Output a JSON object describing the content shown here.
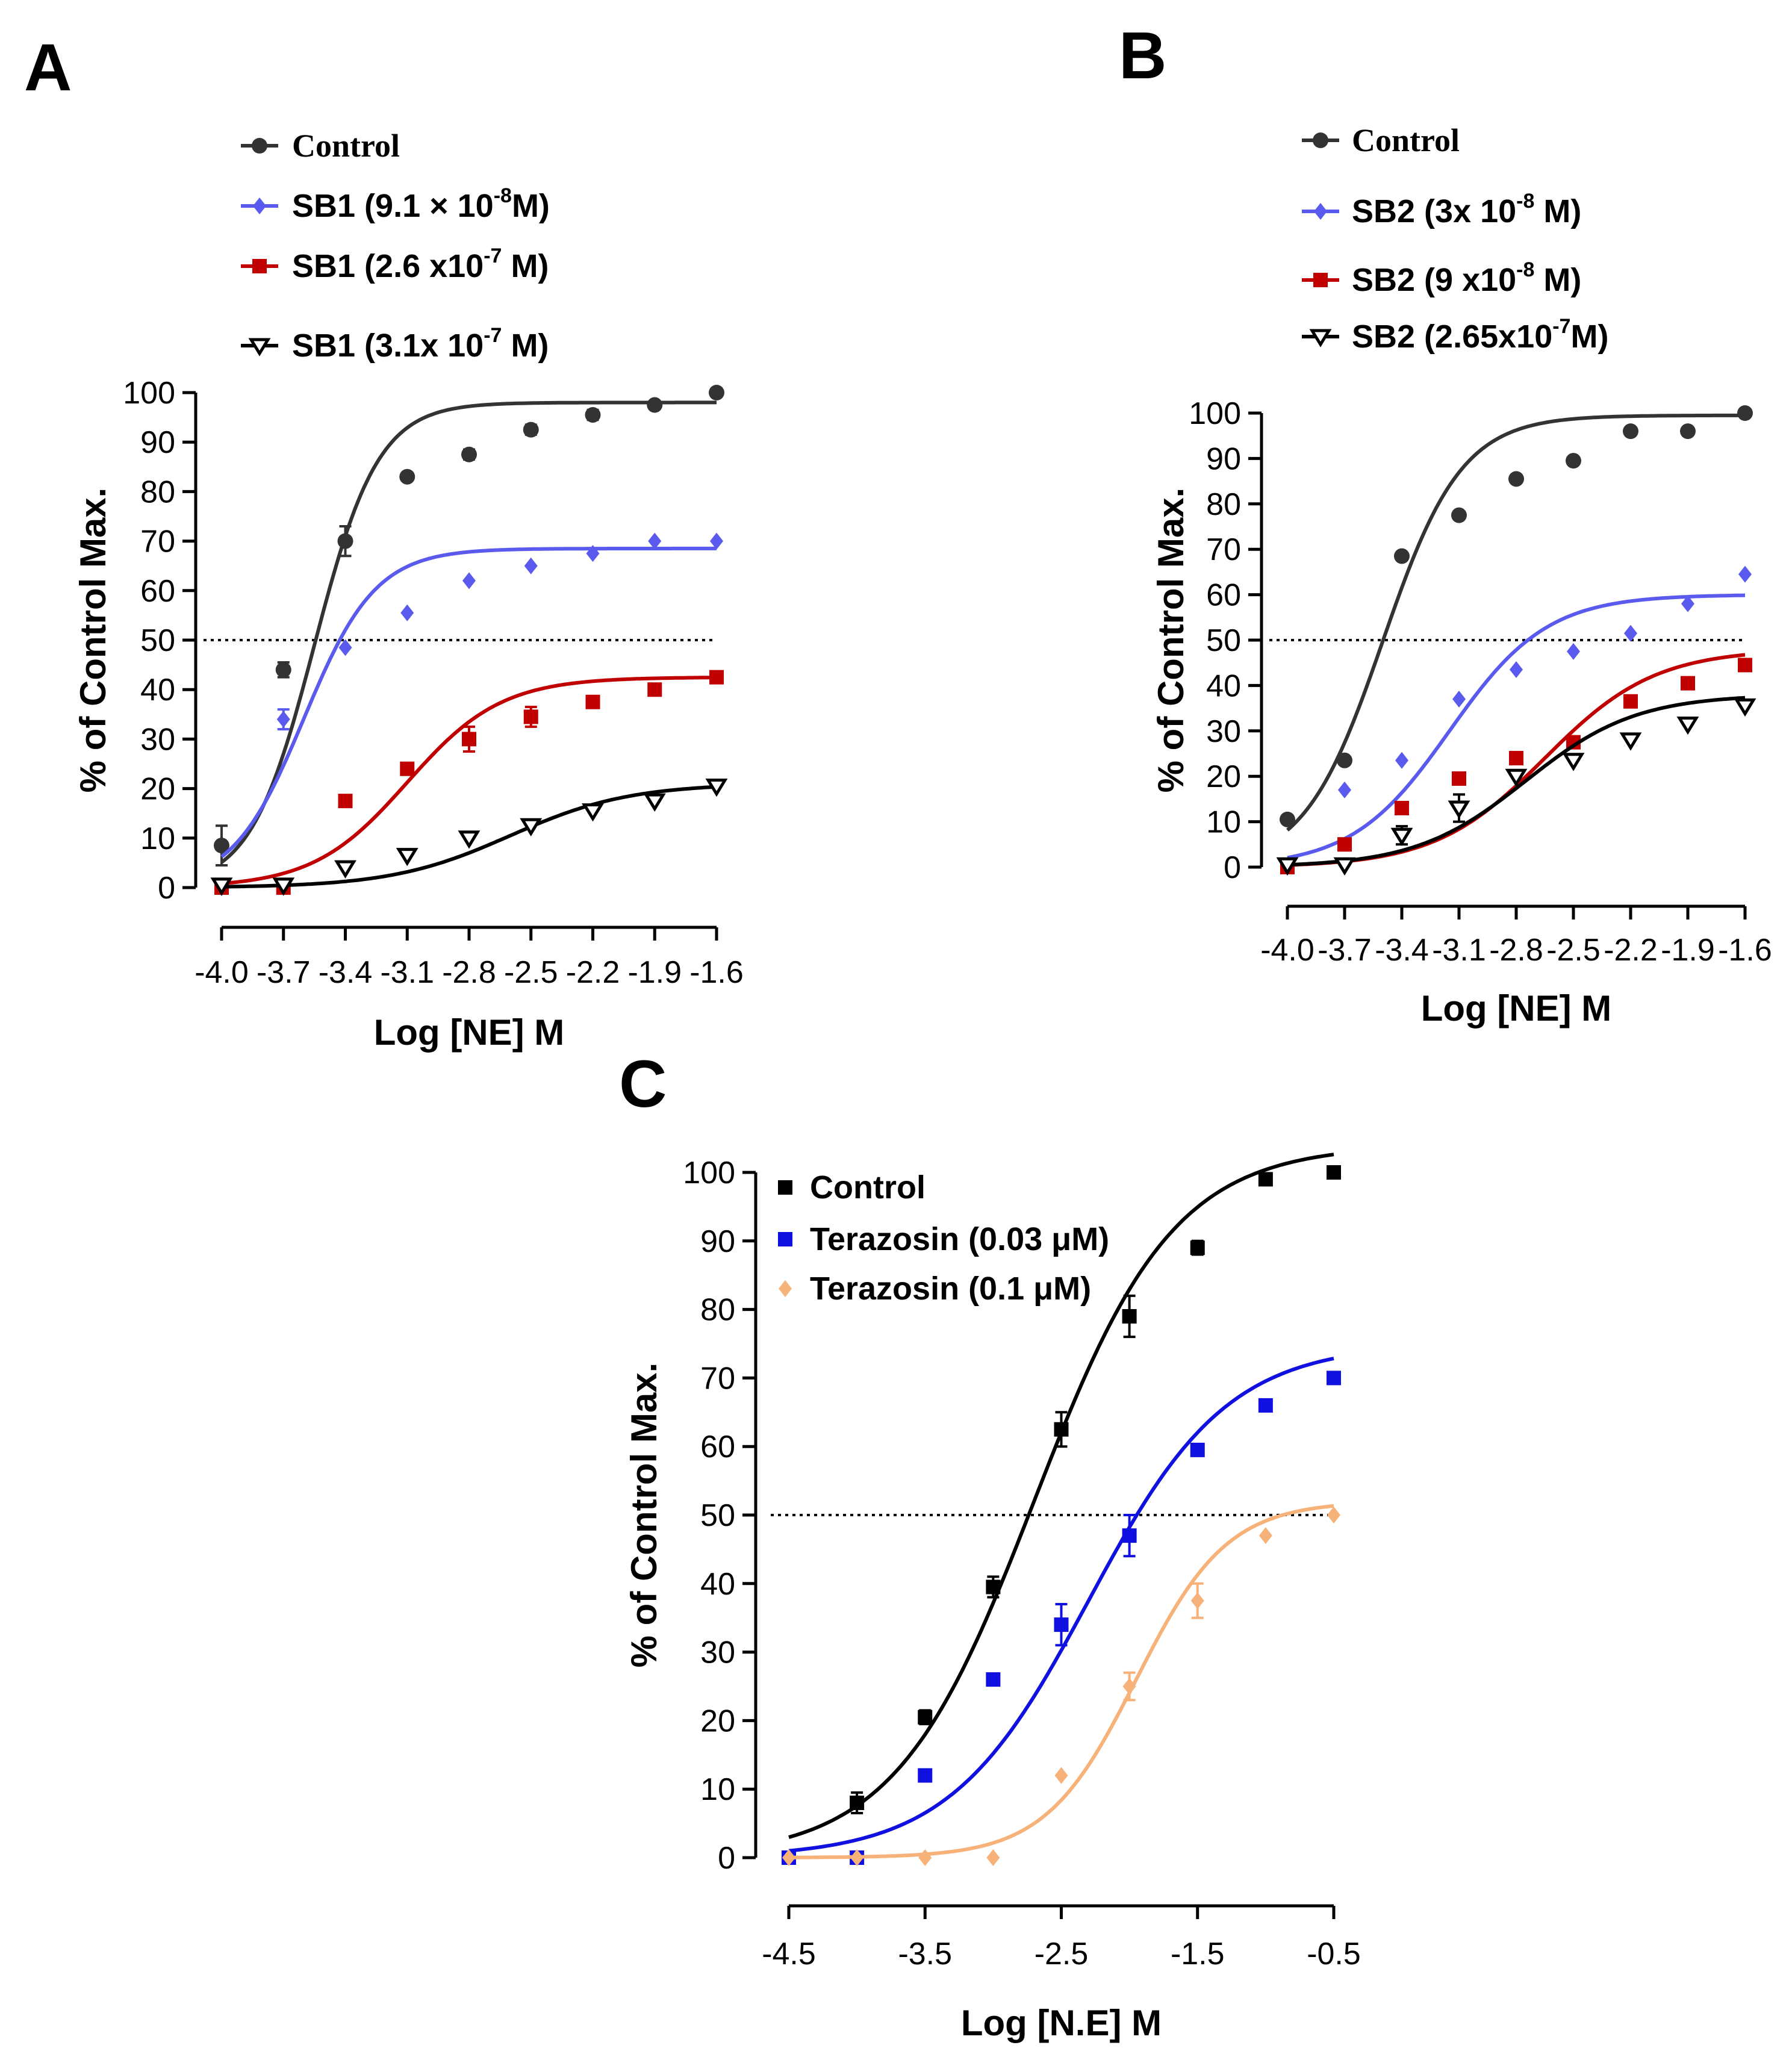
{
  "panels": [
    {
      "id": "A",
      "letter": "A",
      "type": "line",
      "title": "",
      "xlabel": "Log [NE] M",
      "ylabel": "% of Control Max.",
      "xlim": [
        -4.0,
        -1.6
      ],
      "ylim": [
        0,
        100
      ],
      "xticks": [
        -4.0,
        -3.7,
        -3.4,
        -3.1,
        -2.8,
        -2.5,
        -2.2,
        -1.9,
        -1.6
      ],
      "xtick_labels": [
        "-4.0",
        "-3.7",
        "-3.4",
        "-3.1",
        "-2.8",
        "-2.5",
        "-2.2",
        "-1.9",
        "-1.6"
      ],
      "yticks": [
        0,
        10,
        20,
        30,
        40,
        50,
        60,
        70,
        80,
        90,
        100
      ],
      "ytick_labels": [
        "0",
        "10",
        "20",
        "30",
        "40",
        "50",
        "60",
        "70",
        "80",
        "90",
        "100"
      ],
      "reference_y": 50,
      "legend_position": "top-left",
      "series": [
        {
          "name": "Control",
          "legend": {
            "pre": "Control",
            "sup": "",
            "post": ""
          },
          "serif": true,
          "color": "#333333",
          "marker": "circle",
          "x": [
            -4.0,
            -3.7,
            -3.4,
            -3.1,
            -2.8,
            -2.5,
            -2.2,
            -1.9,
            -1.6
          ],
          "y": [
            8.5,
            44,
            70,
            83,
            87.5,
            92.5,
            95.5,
            97.5,
            100
          ],
          "err": [
            4,
            1.5,
            3,
            0.5,
            1,
            1,
            1,
            0.5,
            0
          ],
          "fit": {
            "bottom": 0,
            "top": 98,
            "ec50": -3.55,
            "hill": 2.8
          }
        },
        {
          "name": "SB1 (9.1 × 10-8M)",
          "legend": {
            "pre": "SB1 (9.1 × 10",
            "sup": "-8",
            "post": "M)"
          },
          "serif": false,
          "color": "#5a5aee",
          "marker": "diamond",
          "x": [
            -4.0,
            -3.7,
            -3.4,
            -3.1,
            -2.8,
            -2.5,
            -2.2,
            -1.9,
            -1.6
          ],
          "y": [
            0,
            34,
            48.5,
            55.5,
            62,
            65,
            67.5,
            70,
            70
          ],
          "err": [
            0,
            2,
            0,
            0,
            0,
            0,
            0,
            0,
            0
          ],
          "fit": {
            "bottom": 0,
            "top": 68.5,
            "ec50": -3.6,
            "hill": 2.5
          }
        },
        {
          "name": "SB1 (2.6 x10-7 M)",
          "legend": {
            "pre": "SB1 (2.6 x10",
            "sup": "-7",
            "post": " M)"
          },
          "serif": false,
          "color": "#c00000",
          "marker": "square",
          "x": [
            -4.0,
            -3.7,
            -3.4,
            -3.1,
            -2.8,
            -2.5,
            -2.2,
            -1.9,
            -1.6
          ],
          "y": [
            0,
            0,
            17.5,
            24,
            30,
            34.5,
            37.5,
            40,
            42.5
          ],
          "err": [
            0,
            0,
            0,
            1,
            2.5,
            2,
            0,
            0,
            0
          ],
          "fit": {
            "bottom": 0,
            "top": 42.5,
            "ec50": -3.1,
            "hill": 1.9
          }
        },
        {
          "name": "SB1 (3.1x 10-7 M)",
          "legend": {
            "pre": "SB1 (3.1x 10",
            "sup": "-7",
            "post": " M)"
          },
          "serif": false,
          "color": "#000000",
          "marker": "triangle-down",
          "x": [
            -4.0,
            -3.7,
            -3.4,
            -3.1,
            -2.8,
            -2.5,
            -2.2,
            -1.9,
            -1.6
          ],
          "y": [
            0.5,
            0.5,
            4,
            6.5,
            10,
            12.5,
            15.5,
            17.5,
            20.5
          ],
          "err": [
            0,
            0,
            0,
            0,
            0,
            0,
            0,
            0,
            0
          ],
          "fit": {
            "bottom": 0,
            "top": 21,
            "ec50": -2.6,
            "hill": 1.5
          }
        }
      ]
    },
    {
      "id": "B",
      "letter": "B",
      "type": "line",
      "title": "",
      "xlabel": "Log [NE] M",
      "ylabel": "% of Control Max.",
      "xlim": [
        -4.0,
        -1.6
      ],
      "ylim": [
        0,
        100
      ],
      "xticks": [
        -4.0,
        -3.7,
        -3.4,
        -3.1,
        -2.8,
        -2.5,
        -2.2,
        -1.9,
        -1.6
      ],
      "xtick_labels": [
        "-4.0",
        "-3.7",
        "-3.4",
        "-3.1",
        "-2.8",
        "-2.5",
        "-2.2",
        "-1.9",
        "-1.6"
      ],
      "yticks": [
        0,
        10,
        20,
        30,
        40,
        50,
        60,
        70,
        80,
        90,
        100
      ],
      "ytick_labels": [
        "0",
        "10",
        "20",
        "30",
        "40",
        "50",
        "60",
        "70",
        "80",
        "90",
        "100"
      ],
      "reference_y": 50,
      "legend_position": "top-left",
      "series": [
        {
          "name": "Control",
          "legend": {
            "pre": "Control",
            "sup": "",
            "post": ""
          },
          "serif": true,
          "color": "#333333",
          "marker": "circle",
          "x": [
            -4.0,
            -3.7,
            -3.4,
            -3.1,
            -2.8,
            -2.5,
            -2.2,
            -1.9,
            -1.6
          ],
          "y": [
            10.5,
            23.5,
            68.5,
            77.5,
            85.5,
            89.5,
            96,
            96,
            100
          ],
          "err": [
            0,
            0,
            0,
            0,
            0,
            0,
            0,
            0,
            0
          ],
          "fit": {
            "bottom": 0,
            "top": 99.5,
            "ec50": -3.5,
            "hill": 2.1
          }
        },
        {
          "name": "SB2 (3x 10-8 M)",
          "legend": {
            "pre": "SB2 (3x 10",
            "sup": "-8",
            "post": " M)"
          },
          "serif": false,
          "color": "#5a5aee",
          "marker": "diamond",
          "x": [
            -4.0,
            -3.7,
            -3.4,
            -3.1,
            -2.8,
            -2.5,
            -2.2,
            -1.9,
            -1.6
          ],
          "y": [
            0,
            17,
            23.5,
            37,
            43.5,
            47.5,
            51.5,
            58,
            64.5
          ],
          "err": [
            0,
            0,
            0,
            0,
            0,
            0,
            0,
            0,
            0
          ],
          "fit": {
            "bottom": 0,
            "top": 60,
            "ec50": -3.15,
            "hill": 1.7
          }
        },
        {
          "name": "SB2 (9 x10-8 M)",
          "legend": {
            "pre": "SB2 (9 x10",
            "sup": "-8",
            "post": " M)"
          },
          "serif": false,
          "color": "#c00000",
          "marker": "square",
          "x": [
            -4.0,
            -3.7,
            -3.4,
            -3.1,
            -2.8,
            -2.5,
            -2.2,
            -1.9,
            -1.6
          ],
          "y": [
            0,
            5,
            13,
            19.5,
            24,
            27.5,
            36.5,
            40.5,
            44.5
          ],
          "err": [
            0,
            0,
            0,
            0,
            0,
            0,
            0,
            0,
            0
          ],
          "fit": {
            "bottom": 0,
            "top": 48,
            "ec50": -2.65,
            "hill": 1.5
          }
        },
        {
          "name": "SB2 (2.65x10-7M)",
          "legend": {
            "pre": "SB2 (2.65x10",
            "sup": "-7",
            "post": "M)"
          },
          "serif": false,
          "color": "#000000",
          "marker": "triangle-down",
          "x": [
            -4.0,
            -3.7,
            -3.4,
            -3.1,
            -2.8,
            -2.5,
            -2.2,
            -1.9,
            -1.6
          ],
          "y": [
            0.5,
            0.5,
            7,
            13,
            20,
            23.5,
            28,
            31.5,
            35.5
          ],
          "err": [
            0,
            0,
            2,
            3,
            0,
            0,
            0,
            0,
            0
          ],
          "fit": {
            "bottom": 0,
            "top": 38,
            "ec50": -2.75,
            "hill": 1.5
          }
        }
      ]
    },
    {
      "id": "C",
      "letter": "C",
      "type": "line",
      "title": "",
      "xlabel": "Log [N.E] M",
      "ylabel": "% of Control Max.",
      "xlim": [
        -4.5,
        -0.5
      ],
      "ylim": [
        0,
        100
      ],
      "xticks": [
        -4.5,
        -3.5,
        -2.5,
        -1.5,
        -0.5
      ],
      "xtick_labels": [
        "-4.5",
        "-3.5",
        "-2.5",
        "-1.5",
        "-0.5"
      ],
      "yticks": [
        0,
        10,
        20,
        30,
        40,
        50,
        60,
        70,
        80,
        90,
        100
      ],
      "ytick_labels": [
        "0",
        "10",
        "20",
        "30",
        "40",
        "50",
        "60",
        "70",
        "80",
        "90",
        "100"
      ],
      "reference_y": 50,
      "legend_position": "top-left",
      "series": [
        {
          "name": "Control",
          "legend": {
            "pre": "Control",
            "sup": "",
            "post": ""
          },
          "serif": false,
          "color": "#000000",
          "marker": "square",
          "x": [
            -4.5,
            -4.0,
            -3.5,
            -3.0,
            -2.5,
            -2.0,
            -1.5,
            -1.0,
            -0.5
          ],
          "y": [
            0,
            8,
            20.5,
            39.5,
            62.5,
            79,
            89,
            99,
            100
          ],
          "err": [
            0,
            1.5,
            1,
            1.5,
            2.5,
            3,
            1,
            0,
            0
          ],
          "fit": {
            "bottom": 0,
            "top": 104,
            "ec50": -2.7,
            "hill": 0.85
          }
        },
        {
          "name": "Terazosin (0.03 μM)",
          "legend": {
            "pre": "Terazosin (0.03 μM)",
            "sup": "",
            "post": ""
          },
          "serif": false,
          "color": "#1010e0",
          "marker": "square",
          "x": [
            -4.5,
            -4.0,
            -3.5,
            -3.0,
            -2.5,
            -2.0,
            -1.5,
            -1.0,
            -0.5
          ],
          "y": [
            0,
            0,
            12,
            26,
            34,
            47,
            59.5,
            66,
            70
          ],
          "err": [
            0,
            0,
            0,
            0,
            3,
            3,
            0,
            0,
            0
          ],
          "fit": {
            "bottom": 0,
            "top": 75,
            "ec50": -2.3,
            "hill": 0.85
          }
        },
        {
          "name": "Terazosin (0.1 μM)",
          "legend": {
            "pre": "Terazosin (0.1 μM)",
            "sup": "",
            "post": ""
          },
          "serif": false,
          "color": "#f7b27a",
          "marker": "diamond",
          "x": [
            -4.5,
            -4.0,
            -3.5,
            -3.0,
            -2.5,
            -2.0,
            -1.5,
            -1.0,
            -0.5
          ],
          "y": [
            0,
            0,
            0,
            0,
            12,
            25,
            37.5,
            47,
            50
          ],
          "err": [
            0,
            0,
            0,
            0,
            0,
            2,
            2.5,
            0,
            0
          ],
          "fit": {
            "bottom": 0,
            "top": 52,
            "ec50": -1.95,
            "hill": 1.3
          }
        }
      ]
    }
  ]
}
